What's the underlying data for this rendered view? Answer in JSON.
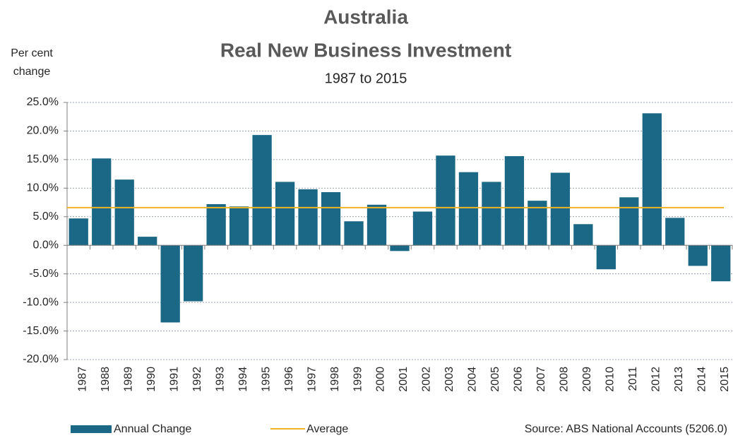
{
  "chart_data": {
    "type": "bar",
    "title": [
      "Australia",
      "Real New Business Investment"
    ],
    "subtitle": "1987 to 2015",
    "y_label": [
      "Per cent",
      "change"
    ],
    "source": "Source: ABS National Accounts (5206.0)",
    "categories": [
      "1987",
      "1988",
      "1989",
      "1990",
      "1991",
      "1992",
      "1993",
      "1994",
      "1995",
      "1996",
      "1997",
      "1998",
      "1999",
      "2000",
      "2001",
      "2002",
      "2003",
      "2004",
      "2005",
      "2006",
      "2007",
      "2008",
      "2009",
      "2010",
      "2011",
      "2012",
      "2013",
      "2014",
      "2015"
    ],
    "series": [
      {
        "name": "Annual Change",
        "color": "#1b6886",
        "values": [
          4.7,
          15.2,
          11.5,
          1.5,
          -13.5,
          -9.8,
          7.2,
          6.8,
          19.3,
          11.1,
          9.8,
          9.3,
          4.2,
          7.1,
          -1.0,
          5.9,
          15.7,
          12.8,
          11.1,
          15.6,
          7.8,
          12.7,
          3.7,
          -4.2,
          8.4,
          23.1,
          4.8,
          -3.6,
          -6.3
        ]
      }
    ],
    "average": {
      "name": "Average",
      "color": "#f0b323",
      "value": 6.6
    },
    "ylim": [
      -20,
      25
    ],
    "yticks": [
      {
        "value": -20,
        "label": "-20.0%"
      },
      {
        "value": -15,
        "label": "-15.0%"
      },
      {
        "value": -10,
        "label": "-10.0%"
      },
      {
        "value": -5,
        "label": "-5.0%"
      },
      {
        "value": 0,
        "label": "0.0%"
      },
      {
        "value": 5,
        "label": "5.0%"
      },
      {
        "value": 10,
        "label": "10.0%"
      },
      {
        "value": 15,
        "label": "15.0%"
      },
      {
        "value": 20,
        "label": "20.0%"
      },
      {
        "value": 25,
        "label": "25.0%"
      }
    ],
    "grid": true
  }
}
